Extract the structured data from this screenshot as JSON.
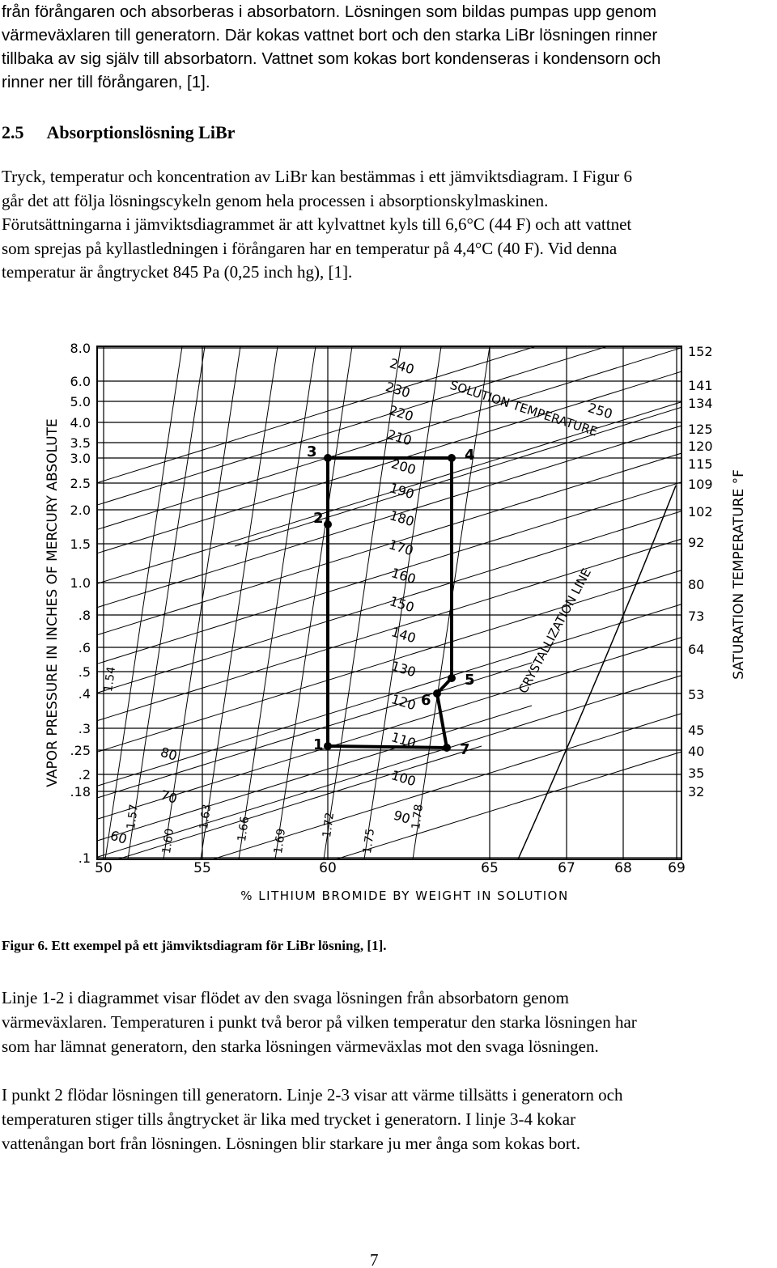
{
  "intro": {
    "lines": [
      "från förångaren och absorberas i absorbatorn. Lösningen som bildas pumpas upp genom",
      "värmeväxlaren till generatorn. Där kokas vattnet bort och den starka LiBr lösningen rinner",
      "tillbaka av sig själv till absorbatorn. Vattnet som kokas bort kondenseras i kondensorn och",
      "rinner ner till förångaren, [1]."
    ]
  },
  "section": {
    "number": "2.5",
    "title": "Absorptionslösning LiBr"
  },
  "paragraph": {
    "lines": [
      "Tryck, temperatur och koncentration av LiBr kan bestämmas i ett jämviktsdiagram. I Figur 6",
      "går det att följa lösningscykeln genom hela processen i absorptionskylmaskinen.",
      "Förutsättningarna i jämviktsdiagrammet är att kylvattnet kyls till 6,6°C (44 F) och att vattnet",
      "som sprejas på kyllastledningen i förångaren har en temperatur på 4,4°C (40 F). Vid denna",
      "temperatur är ångtrycket 845 Pa (0,25 inch hg), [1]."
    ]
  },
  "figure": {
    "left_labels": [
      "8.0",
      "6.0",
      "5.0",
      "4.0",
      "3.5",
      "3.0",
      "2.5",
      "2.0",
      "1.5",
      "1.0",
      ".8",
      ".6",
      ".5",
      ".4",
      ".3",
      ".25",
      ".2",
      ".18",
      ".1"
    ],
    "right_labels": [
      "152",
      "141",
      "134",
      "125",
      "120",
      "115",
      "109",
      "102",
      "92",
      "80",
      "73",
      "64",
      "53",
      "45",
      "40",
      "35",
      "32"
    ],
    "x_labels": [
      "50",
      "55",
      "60",
      "65",
      "67",
      "68",
      "69"
    ],
    "y_title": "VAPOR PRESSURE IN INCHES OF MERCURY ABSOLUTE",
    "y2_title": "SATURATION TEMPERATURE °F",
    "x_title": "% LITHIUM BROMIDE BY WEIGHT IN SOLUTION",
    "temperature_labels": [
      "240",
      "230",
      "220",
      "210",
      "200",
      "190",
      "180",
      "170",
      "160",
      "150",
      "140",
      "130",
      "120",
      "110",
      "100",
      "90",
      "80",
      "70",
      "60",
      "250"
    ],
    "concentration_labels": [
      "1.54",
      "1.57",
      "1.60",
      "1.63",
      "1.66",
      "1.69",
      "1.72",
      "1.75",
      "1.78"
    ],
    "point_labels": [
      "1",
      "2",
      "3",
      "4",
      "5",
      "6",
      "7"
    ],
    "annotations": [
      "SOLUTION TEMPERATURE",
      "CRYSTALLIZATION LINE"
    ]
  },
  "caption": "Figur 6. Ett exempel på ett jämviktsdiagram för LiBr lösning, [1].",
  "after": [
    {
      "lines": [
        "Linje 1-2 i diagrammet visar flödet av den svaga lösningen från absorbatorn genom",
        "värmeväxlaren. Temperaturen i punkt två beror på vilken temperatur den starka lösningen har",
        "som har lämnat generatorn, den starka lösningen värmeväxlas mot den svaga lösningen."
      ]
    },
    {
      "lines": [
        "I punkt 2 flödar lösningen till generatorn. Linje 2-3 visar att värme tillsätts i generatorn och",
        "temperaturen stiger tills ångtrycket är lika med trycket i generatorn. I linje 3-4 kokar",
        "vattenångan bort från lösningen. Lösningen blir starkare ju mer ånga som kokas bort."
      ]
    }
  ],
  "page_number": "7"
}
